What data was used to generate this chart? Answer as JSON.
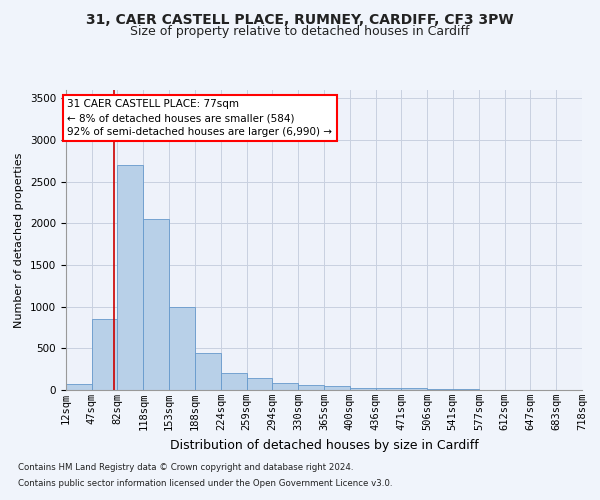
{
  "title1": "31, CAER CASTELL PLACE, RUMNEY, CARDIFF, CF3 3PW",
  "title2": "Size of property relative to detached houses in Cardiff",
  "xlabel": "Distribution of detached houses by size in Cardiff",
  "ylabel": "Number of detached properties",
  "footnote1": "Contains HM Land Registry data © Crown copyright and database right 2024.",
  "footnote2": "Contains public sector information licensed under the Open Government Licence v3.0.",
  "annotation_line1": "31 CAER CASTELL PLACE: 77sqm",
  "annotation_line2": "← 8% of detached houses are smaller (584)",
  "annotation_line3": "92% of semi-detached houses are larger (6,990) →",
  "property_size": 77,
  "bar_edges": [
    12,
    47,
    82,
    118,
    153,
    188,
    224,
    259,
    294,
    330,
    365,
    400,
    436,
    471,
    506,
    541,
    577,
    612,
    647,
    683,
    718
  ],
  "bar_heights": [
    70,
    850,
    2700,
    2050,
    1000,
    450,
    210,
    145,
    80,
    55,
    45,
    30,
    25,
    20,
    10,
    8,
    5,
    4,
    3,
    2
  ],
  "bar_color": "#b8d0e8",
  "bar_edge_color": "#6699cc",
  "red_line_color": "#cc0000",
  "bg_color": "#f0f4fb",
  "plot_bg_color": "#eef2fa",
  "grid_color": "#c8d0e0",
  "ylim": [
    0,
    3600
  ],
  "yticks": [
    0,
    500,
    1000,
    1500,
    2000,
    2500,
    3000,
    3500
  ],
  "title1_fontsize": 10,
  "title2_fontsize": 9,
  "xlabel_fontsize": 9,
  "ylabel_fontsize": 8,
  "tick_fontsize": 7.5,
  "annot_fontsize": 7.5
}
